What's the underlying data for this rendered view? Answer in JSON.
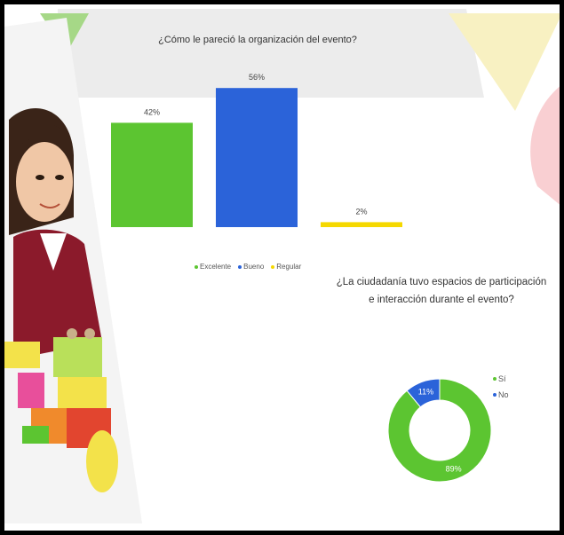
{
  "chart_data": [
    {
      "type": "bar",
      "title": "¿Cómo le pareció la organización del evento?",
      "categories": [
        "Excelente",
        "Bueno",
        "Regular"
      ],
      "values": [
        42,
        56,
        2
      ],
      "value_labels": [
        "42%",
        "56%",
        "2%"
      ],
      "colors": [
        "#5cc531",
        "#2b63d9",
        "#f5d800"
      ],
      "ylim": [
        0,
        60
      ],
      "legend": "bottom",
      "grid": false
    },
    {
      "type": "pie",
      "donut": true,
      "title": "¿La ciudadanía tuvo espacios de participación e interacción durante el evento?",
      "categories": [
        "Sí",
        "No"
      ],
      "values": [
        89,
        11
      ],
      "value_labels": [
        "89%",
        "11%"
      ],
      "colors": [
        "#5cc531",
        "#2b63d9"
      ],
      "legend": "right"
    }
  ],
  "decor": {
    "colors": {
      "gray": "#ececec",
      "yellow": "#f8f1c2",
      "pink": "#f9cfd2",
      "green": "#a6d887",
      "skin": "#f0c7a6",
      "hair": "#3a2418",
      "maroon": "#8b1a2b",
      "lightgreen": "#b9e05a",
      "blocks_yellow": "#f3e24a",
      "blocks_orange": "#f08a2c",
      "blocks_red": "#e2452f",
      "blocks_pink": "#e84f9b"
    }
  }
}
